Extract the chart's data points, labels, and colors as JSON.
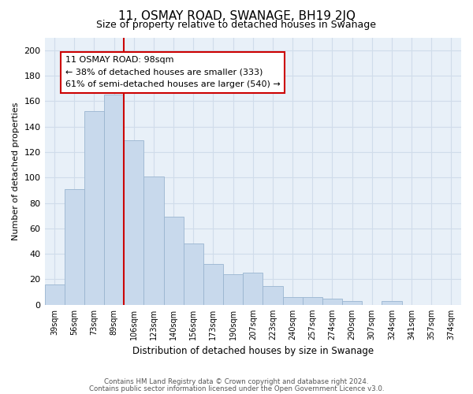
{
  "title": "11, OSMAY ROAD, SWANAGE, BH19 2JQ",
  "subtitle": "Size of property relative to detached houses in Swanage",
  "xlabel": "Distribution of detached houses by size in Swanage",
  "ylabel": "Number of detached properties",
  "bar_color": "#c8d9ec",
  "bar_edge_color": "#9ab5d0",
  "categories": [
    "39sqm",
    "56sqm",
    "73sqm",
    "89sqm",
    "106sqm",
    "123sqm",
    "140sqm",
    "156sqm",
    "173sqm",
    "190sqm",
    "207sqm",
    "223sqm",
    "240sqm",
    "257sqm",
    "274sqm",
    "290sqm",
    "307sqm",
    "324sqm",
    "341sqm",
    "357sqm",
    "374sqm"
  ],
  "values": [
    16,
    91,
    152,
    165,
    129,
    101,
    69,
    48,
    32,
    24,
    25,
    15,
    6,
    6,
    5,
    3,
    0,
    3,
    0,
    0,
    0
  ],
  "ylim": [
    0,
    210
  ],
  "yticks": [
    0,
    20,
    40,
    60,
    80,
    100,
    120,
    140,
    160,
    180,
    200
  ],
  "vline_color": "#cc0000",
  "annotation_title": "11 OSMAY ROAD: 98sqm",
  "annotation_line1": "← 38% of detached houses are smaller (333)",
  "annotation_line2": "61% of semi-detached houses are larger (540) →",
  "annotation_box_color": "#ffffff",
  "annotation_box_edge": "#cc0000",
  "footer_line1": "Contains HM Land Registry data © Crown copyright and database right 2024.",
  "footer_line2": "Contains public sector information licensed under the Open Government Licence v3.0.",
  "background_color": "#ffffff",
  "ax_facecolor": "#e8f0f8",
  "grid_color": "#d0dcea"
}
